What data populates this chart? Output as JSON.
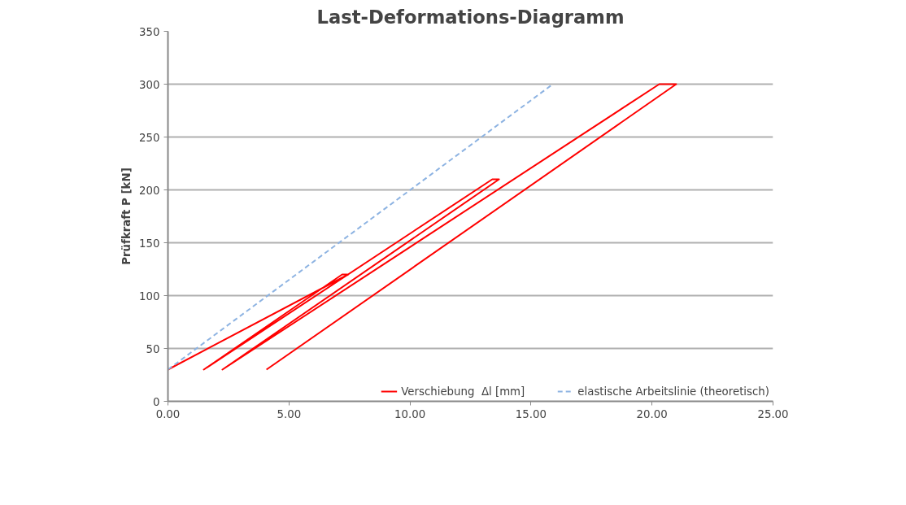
{
  "chart_data": {
    "type": "line",
    "title": "Last-Deformations-Diagramm",
    "ylabel": "Prüfkraft P [kN]",
    "series": [
      {
        "name": "Verschiebung  Δl [mm]",
        "color": "#ff0000",
        "line_style": "solid",
        "x": [
          0,
          7.45,
          7.2,
          1.48,
          13.4,
          13.68,
          2.25,
          20.3,
          21.0,
          4.07
        ],
        "values": [
          30,
          120,
          120,
          30,
          210,
          210,
          30,
          300,
          300,
          30
        ]
      },
      {
        "name": "elastische Arbeitslinie (theoretisch)",
        "color": "#8db3e2",
        "line_style": "dashed",
        "x": [
          0,
          15.9
        ],
        "values": [
          30,
          300
        ]
      }
    ],
    "xlim": [
      0,
      25
    ],
    "xticks": [
      {
        "value": 0,
        "label": "0.00"
      },
      {
        "value": 5,
        "label": "5.00"
      },
      {
        "value": 10,
        "label": "10.00"
      },
      {
        "value": 15,
        "label": "15.00"
      },
      {
        "value": 20,
        "label": "20.00"
      },
      {
        "value": 25,
        "label": "25.00"
      }
    ],
    "ylim": [
      0,
      350
    ],
    "yticks": [
      0,
      50,
      100,
      150,
      200,
      250,
      300,
      350
    ],
    "grid": "y",
    "legend": "bottom right",
    "marker": "none"
  }
}
